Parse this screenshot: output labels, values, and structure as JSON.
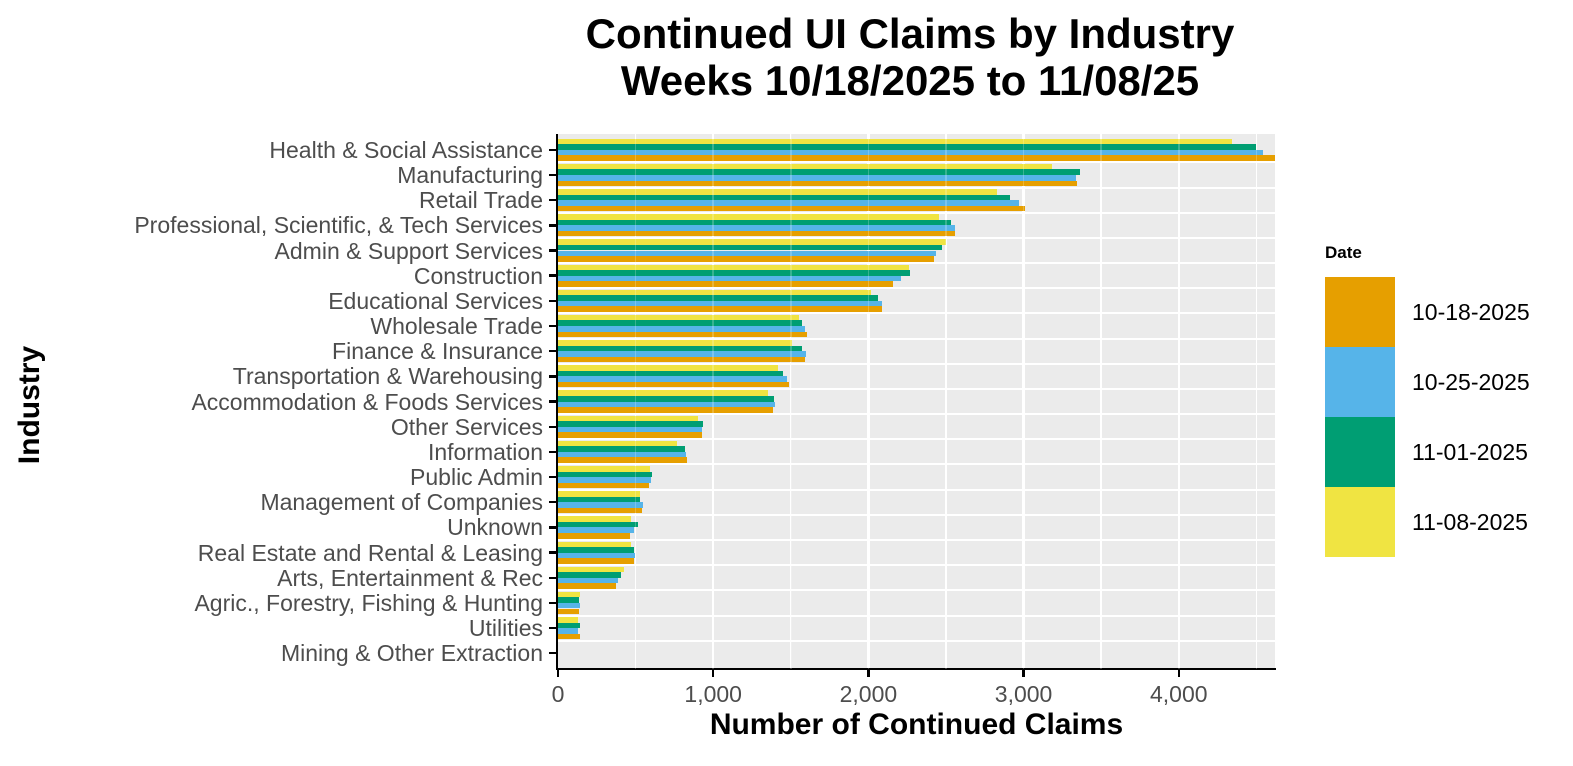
{
  "title": {
    "line1": "Continued UI Claims by Industry",
    "line2": "Weeks 10/18/2025 to 11/08/25"
  },
  "x_axis": {
    "label": "Number of Continued Claims",
    "ticks": [
      {
        "value": 0,
        "label": "0"
      },
      {
        "value": 1000,
        "label": "1,000"
      },
      {
        "value": 2000,
        "label": "2,000"
      },
      {
        "value": 3000,
        "label": "3,000"
      },
      {
        "value": 4000,
        "label": "4,000"
      }
    ]
  },
  "y_axis": {
    "label": "Industry"
  },
  "legend": {
    "title": "Date",
    "entries": [
      {
        "label": "10-18-2025",
        "color": "#E69F00"
      },
      {
        "label": "10-25-2025",
        "color": "#56B4E9"
      },
      {
        "label": "11-01-2025",
        "color": "#009E73"
      },
      {
        "label": "11-08-2025",
        "color": "#F0E442"
      }
    ]
  },
  "colors": {
    "panel_background": "#EBEBEB",
    "gridline": "#FFFFFF",
    "axis_text": "#4D4D4D",
    "axis_line": "#000000",
    "title_text": "#000000"
  },
  "chart_data": {
    "type": "bar",
    "orientation": "horizontal",
    "title": "Continued UI Claims by Industry",
    "subtitle": "Weeks 10/18/2025 to 11/08/25",
    "xlabel": "Number of Continued Claims",
    "ylabel": "Industry",
    "xlim": [
      0,
      4620
    ],
    "grid": "white major and minor vertical gridlines on gray panel",
    "legend_position": "right",
    "legend_title": "Date",
    "categories": [
      "Health & Social Assistance",
      "Manufacturing",
      "Retail Trade",
      "Professional, Scientific, & Tech Services",
      "Admin & Support Services",
      "Construction",
      "Educational Services",
      "Wholesale Trade",
      "Finance & Insurance",
      "Transportation & Warehousing",
      "Accommodation & Foods Services",
      "Other Services",
      "Information",
      "Public Admin",
      "Management of Companies",
      "Unknown",
      "Real Estate and Rental & Leasing",
      "Arts, Entertainment & Rec",
      "Agric., Forestry, Fishing & Hunting",
      "Utilities",
      "Mining & Other Extraction"
    ],
    "series": [
      {
        "name": "10-18-2025",
        "color": "#E69F00",
        "values": [
          4620,
          3345,
          3010,
          2560,
          2420,
          2160,
          2085,
          1605,
          1590,
          1490,
          1385,
          930,
          830,
          585,
          540,
          465,
          487,
          375,
          135,
          140,
          0
        ]
      },
      {
        "name": "10-25-2025",
        "color": "#56B4E9",
        "values": [
          4545,
          3340,
          2970,
          2560,
          2435,
          2210,
          2090,
          1590,
          1600,
          1475,
          1400,
          925,
          825,
          600,
          550,
          492,
          493,
          385,
          140,
          130,
          0
        ]
      },
      {
        "name": "11-01-2025",
        "color": "#009E73",
        "values": [
          4495,
          3365,
          2915,
          2535,
          2475,
          2270,
          2065,
          1570,
          1575,
          1450,
          1390,
          935,
          820,
          608,
          528,
          518,
          487,
          405,
          135,
          140,
          0
        ]
      },
      {
        "name": "11-08-2025",
        "color": "#F0E442",
        "values": [
          4345,
          3180,
          2830,
          2455,
          2500,
          2260,
          2015,
          1550,
          1510,
          1415,
          1350,
          905,
          765,
          593,
          530,
          468,
          470,
          425,
          140,
          130,
          0
        ]
      }
    ],
    "bar_order_top_to_bottom": [
      "11-08-2025",
      "11-01-2025",
      "10-25-2025",
      "10-18-2025"
    ],
    "major_gridlines": [
      1000,
      2000,
      3000,
      4000
    ],
    "minor_gridlines": [
      500,
      1500,
      2500,
      3500,
      4500
    ]
  }
}
